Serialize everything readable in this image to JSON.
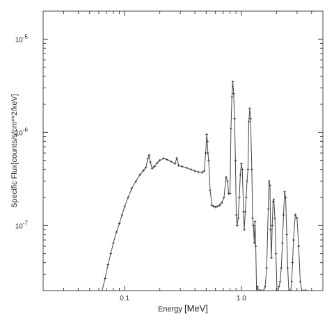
{
  "chart_data": {
    "type": "line",
    "xlabel_prefix": "Energy ",
    "xlabel_unit": "[MeV]",
    "ylabel": "Specific Flux[counts/s/cm**2/keV]",
    "xscale": "log",
    "yscale": "log",
    "xlim": [
      0.02,
      5.0
    ],
    "ylim": [
      2e-08,
      2e-05
    ],
    "grid": false,
    "line_color": "#444444",
    "x_ticks": [
      {
        "value": 0.1,
        "label": "0.1"
      },
      {
        "value": 1.0,
        "label": "1.0"
      }
    ],
    "y_ticks": [
      {
        "value": 1e-07,
        "mantissa": "10",
        "exp": "-7"
      },
      {
        "value": 1e-06,
        "mantissa": "10",
        "exp": "-6"
      },
      {
        "value": 1e-05,
        "mantissa": "10",
        "exp": "-5"
      }
    ],
    "series": [
      {
        "x": [
          0.064,
          0.068,
          0.072,
          0.076,
          0.08,
          0.085,
          0.09,
          0.095,
          0.1,
          0.107,
          0.115,
          0.125,
          0.135,
          0.145,
          0.152,
          0.158,
          0.162,
          0.166,
          0.172,
          0.18,
          0.19,
          0.2,
          0.215,
          0.23,
          0.25,
          0.27,
          0.28,
          0.29,
          0.31,
          0.34,
          0.37,
          0.4,
          0.43,
          0.46,
          0.48,
          0.495,
          0.505,
          0.511,
          0.517,
          0.525,
          0.54,
          0.56,
          0.58,
          0.6,
          0.62,
          0.65,
          0.68,
          0.71,
          0.74,
          0.76,
          0.78,
          0.8,
          0.815,
          0.83,
          0.845,
          0.86,
          0.875,
          0.89,
          0.905,
          0.92,
          0.94,
          0.96,
          0.98,
          1.0,
          1.02,
          1.045,
          1.06,
          1.08,
          1.1,
          1.12,
          1.14,
          1.16,
          1.18,
          1.2,
          1.23,
          1.25,
          1.27,
          1.29,
          1.31,
          1.33,
          1.35,
          1.38,
          1.4,
          1.43,
          1.46,
          1.5,
          1.55,
          1.6,
          1.65,
          1.7,
          1.73,
          1.76,
          1.78,
          1.81,
          1.84,
          1.87,
          1.9,
          1.94,
          1.98,
          2.02,
          2.06,
          2.1,
          2.15,
          2.2,
          2.25,
          2.3,
          2.35,
          2.4,
          2.45,
          2.5,
          2.55,
          2.6,
          2.65,
          2.7,
          2.75,
          2.8,
          2.9,
          3.0,
          3.1,
          3.2,
          3.3,
          3.4,
          3.5,
          3.6
        ],
        "y": [
          2e-08,
          2.7e-08,
          3.8e-08,
          5e-08,
          6.5e-08,
          8.5e-08,
          1.05e-07,
          1.3e-07,
          1.6e-07,
          2e-07,
          2.5e-07,
          3e-07,
          3.5e-07,
          3.9e-07,
          4.2e-07,
          5.2e-07,
          5.7e-07,
          4.8e-07,
          4.1e-07,
          4.3e-07,
          4.7e-07,
          5e-07,
          5.25e-07,
          5.1e-07,
          4.85e-07,
          4.6e-07,
          5.3e-07,
          4.4e-07,
          4.3e-07,
          4.15e-07,
          4e-07,
          3.85e-07,
          3.75e-07,
          3.7e-07,
          3.85e-07,
          6e-07,
          9.5e-07,
          8e-07,
          6e-07,
          5e-07,
          2.4e-07,
          1.65e-07,
          1.6e-07,
          1.58e-07,
          1.6e-07,
          1.65e-07,
          1.75e-07,
          2e-07,
          3.3e-07,
          3e-07,
          2.2e-07,
          2.2e-07,
          1.1e-06,
          2.4e-06,
          3.5e-06,
          2.6e-06,
          1.4e-06,
          5e-07,
          1.3e-07,
          1e-07,
          1.2e-07,
          2e-07,
          3.5e-07,
          4.6e-07,
          4e-07,
          1.4e-07,
          9e-08,
          1.4e-07,
          2e-07,
          3e-07,
          4e-07,
          1.3e-06,
          1.8e-06,
          1.4e-06,
          4e-07,
          1.2e-07,
          1e-07,
          6.5e-08,
          1.1e-07,
          6e-08,
          2e-08,
          2.2e-08,
          2e-08,
          2e-08,
          2e-08,
          2e-08,
          2e-08,
          2.2e-08,
          3.5e-08,
          1.5e-07,
          3e-07,
          2.7e-07,
          9e-08,
          4.5e-08,
          1e-07,
          1.8e-07,
          1.9e-07,
          1.2e-07,
          5e-08,
          2e-08,
          2e-08,
          2.2e-08,
          2.5e-08,
          3.5e-08,
          6.5e-08,
          1.3e-07,
          2.3e-07,
          2e-07,
          8e-08,
          3.5e-08,
          2e-08,
          2e-08,
          2e-08,
          2.5e-08,
          4e-08,
          7e-08,
          1.3e-07,
          1.2e-07,
          6e-08,
          2.5e-08,
          2e-08,
          2e-08,
          2e-08,
          2e-08
        ]
      }
    ]
  }
}
